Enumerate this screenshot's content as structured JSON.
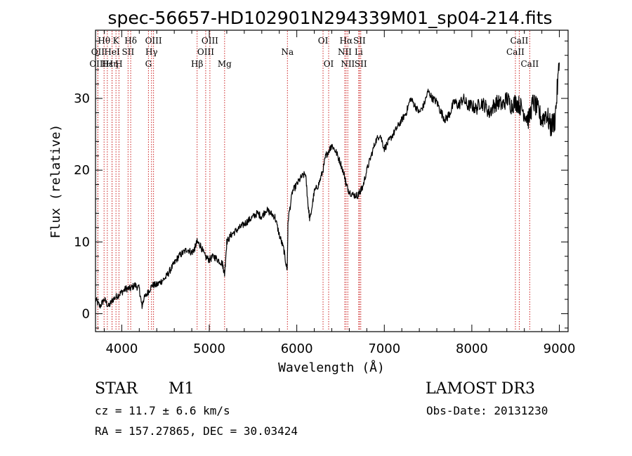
{
  "chart_data": {
    "type": "line",
    "title": "spec-56657-HD102901N294339M01_sp04-214.fits",
    "xlabel": "Wavelength (Å)",
    "ylabel": "Flux (relative)",
    "xlim": [
      3700,
      9100
    ],
    "ylim": [
      -2.5,
      39.5
    ],
    "x_ticks": [
      4000,
      5000,
      6000,
      7000,
      8000,
      9000
    ],
    "y_ticks": [
      0,
      10,
      20,
      30
    ],
    "grid": false,
    "series": [
      {
        "name": "flux",
        "x": [
          3700,
          3750,
          3800,
          3850,
          3900,
          3950,
          4000,
          4050,
          4100,
          4150,
          4200,
          4230,
          4250,
          4300,
          4350,
          4400,
          4450,
          4500,
          4550,
          4600,
          4650,
          4700,
          4750,
          4800,
          4830,
          4860,
          4900,
          4950,
          5000,
          5050,
          5100,
          5150,
          5175,
          5200,
          5250,
          5300,
          5350,
          5400,
          5450,
          5500,
          5550,
          5600,
          5650,
          5700,
          5750,
          5800,
          5850,
          5890,
          5900,
          5950,
          6000,
          6050,
          6100,
          6130,
          6150,
          6200,
          6250,
          6300,
          6330,
          6380,
          6400,
          6450,
          6500,
          6550,
          6563,
          6600,
          6650,
          6700,
          6720,
          6750,
          6800,
          6850,
          6900,
          6950,
          7000,
          7050,
          7100,
          7150,
          7200,
          7250,
          7300,
          7350,
          7400,
          7450,
          7500,
          7550,
          7600,
          7650,
          7700,
          7750,
          7800,
          7850,
          7900,
          7950,
          8000,
          8050,
          8100,
          8150,
          8200,
          8250,
          8300,
          8350,
          8400,
          8450,
          8500,
          8550,
          8600,
          8650,
          8700,
          8750,
          8800,
          8850,
          8900,
          8950,
          9000
        ],
        "y": [
          2,
          1,
          2,
          1,
          2,
          2.5,
          3,
          3.5,
          3.5,
          4,
          3.5,
          1,
          2,
          3,
          4,
          4,
          4.5,
          5,
          6,
          7,
          8,
          8.5,
          9,
          8.5,
          9,
          10,
          9.5,
          8,
          7.5,
          8,
          7.5,
          7,
          5.5,
          10,
          11,
          11.5,
          12,
          12.5,
          13,
          13.5,
          14,
          13.5,
          14.5,
          14,
          13.5,
          11,
          9,
          6,
          13,
          17,
          18,
          19,
          19.5,
          15,
          13,
          17,
          18,
          20,
          22,
          23,
          23.5,
          22.5,
          21,
          19,
          18,
          17,
          16.5,
          16.5,
          17,
          17.5,
          20,
          22,
          24,
          25,
          23,
          24,
          25,
          26,
          27,
          28,
          30,
          29,
          28,
          29,
          31,
          30,
          29.5,
          28,
          27,
          28,
          29.5,
          29,
          30,
          29,
          29,
          28.5,
          29.5,
          29,
          28,
          29,
          29.5,
          29,
          30,
          29,
          29.5,
          29,
          28,
          27,
          29.5,
          28.5,
          27,
          28,
          26,
          27,
          35
        ],
        "color": "#000000"
      }
    ],
    "spectral_lines": [
      {
        "label": "Hθ",
        "wavelength": 3798,
        "row": 1
      },
      {
        "label": "OII",
        "wavelength": 3727,
        "row": 2
      },
      {
        "label": "OIII",
        "wavelength": 3727,
        "row": 3
      },
      {
        "label": "Hε",
        "wavelength": 3835,
        "row": 3
      },
      {
        "label": "Hη",
        "wavelength": 3889,
        "row": 3
      },
      {
        "label": "HeI",
        "wavelength": 3889,
        "row": 2
      },
      {
        "label": "K",
        "wavelength": 3934,
        "row": 1
      },
      {
        "label": "H",
        "wavelength": 3968,
        "row": 3
      },
      {
        "label": "SII",
        "wavelength": 4072,
        "row": 2
      },
      {
        "label": "Hδ",
        "wavelength": 4102,
        "row": 1
      },
      {
        "label": "OIII",
        "wavelength": 4363,
        "row": 1
      },
      {
        "label": "Hγ",
        "wavelength": 4340,
        "row": 2
      },
      {
        "label": "G",
        "wavelength": 4305,
        "row": 3
      },
      {
        "label": "OIII",
        "wavelength": 5007,
        "row": 1
      },
      {
        "label": "OIII",
        "wavelength": 4959,
        "row": 2
      },
      {
        "label": "Hβ",
        "wavelength": 4861,
        "row": 3
      },
      {
        "label": "Mg",
        "wavelength": 5175,
        "row": 3
      },
      {
        "label": "Na",
        "wavelength": 5893,
        "row": 2
      },
      {
        "label": "OI",
        "wavelength": 6300,
        "row": 1
      },
      {
        "label": "OI",
        "wavelength": 6364,
        "row": 3
      },
      {
        "label": "Hα",
        "wavelength": 6563,
        "row": 1
      },
      {
        "label": "SII",
        "wavelength": 6716,
        "row": 1
      },
      {
        "label": "NII",
        "wavelength": 6548,
        "row": 2
      },
      {
        "label": "Li",
        "wavelength": 6708,
        "row": 2
      },
      {
        "label": "NII",
        "wavelength": 6583,
        "row": 3
      },
      {
        "label": "SII",
        "wavelength": 6731,
        "row": 3
      },
      {
        "label": "CaII",
        "wavelength": 8542,
        "row": 1
      },
      {
        "label": "CaII",
        "wavelength": 8498,
        "row": 2
      },
      {
        "label": "CaII",
        "wavelength": 8662,
        "row": 3
      }
    ],
    "line_color": "#cc2222"
  },
  "info": {
    "object_class": "STAR",
    "subclass": "M1",
    "survey": "LAMOST DR3",
    "redshift": "cz = 11.7 ± 6.6 km/s",
    "obs_date": "Obs-Date: 20131230",
    "coords": "RA = 157.27865, DEC =  30.03424"
  }
}
